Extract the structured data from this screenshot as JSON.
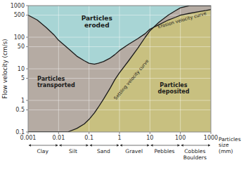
{
  "chart_data": {
    "type": "area",
    "ylabel": "Flow velocity (cm/s)",
    "xlabel": "Particles\nsize\n(mm)",
    "log": true,
    "grid": true,
    "xlim": [
      0.001,
      1000
    ],
    "ylim": [
      0.1,
      1000
    ],
    "xticks": [
      0.001,
      0.01,
      0.1,
      1,
      10,
      100,
      1000
    ],
    "yticks": [
      0.1,
      0.5,
      1,
      5,
      10,
      50,
      100,
      500,
      1000
    ],
    "series": [
      {
        "name": "Erosion velocity curve",
        "color": "#1a1a1a",
        "x": [
          0.001,
          0.002,
          0.004,
          0.007,
          0.01,
          0.02,
          0.04,
          0.07,
          0.1,
          0.15,
          0.2,
          0.3,
          0.5,
          0.7,
          1.0,
          2,
          4,
          7,
          10,
          20,
          40,
          70,
          100,
          200,
          400,
          700,
          1000
        ],
        "values": [
          500,
          350,
          200,
          120,
          80,
          45,
          25,
          18,
          15,
          14,
          15,
          17,
          22,
          28,
          38,
          60,
          90,
          130,
          180,
          250,
          350,
          430,
          500,
          570,
          640,
          700,
          750
        ]
      },
      {
        "name": "Settling velocity curve",
        "color": "#1a1a1a",
        "x": [
          0.001,
          0.002,
          0.004,
          0.007,
          0.01,
          0.02,
          0.04,
          0.07,
          0.1,
          0.15,
          0.2,
          0.3,
          0.5,
          0.7,
          1.0,
          2,
          4,
          7,
          10,
          20,
          40,
          70,
          100,
          200,
          400,
          700,
          1000
        ],
        "values": [
          0.1,
          0.1,
          0.1,
          0.1,
          0.1,
          0.1,
          0.13,
          0.18,
          0.25,
          0.4,
          0.6,
          1.1,
          2.5,
          4.5,
          7.5,
          18,
          45,
          100,
          160,
          300,
          500,
          700,
          850,
          1000,
          1000,
          1000,
          1000
        ]
      }
    ],
    "regions": [
      {
        "label": "Particles\neroded",
        "color": "#a8d5d5"
      },
      {
        "label": "Particles\ntransported",
        "color": "#b5aba3"
      },
      {
        "label": "Particles\ndeposited",
        "color": "#c8c080"
      }
    ],
    "size_classes": [
      {
        "label": "Clay",
        "xmid": 0.003,
        "xmin": 0.001,
        "xmax": 0.01
      },
      {
        "label": "Silt",
        "xmid": 0.03,
        "xmin": 0.01,
        "xmax": 0.1
      },
      {
        "label": "Sand",
        "xmid": 0.3,
        "xmin": 0.1,
        "xmax": 1
      },
      {
        "label": "Gravel",
        "xmid": 3,
        "xmin": 1,
        "xmax": 10
      },
      {
        "label": "Pebbles",
        "xmid": 30,
        "xmin": 10,
        "xmax": 100
      },
      {
        "label": "Cobbles\nBoulders",
        "xmid": 300,
        "xmin": 100,
        "xmax": 1000
      }
    ]
  }
}
